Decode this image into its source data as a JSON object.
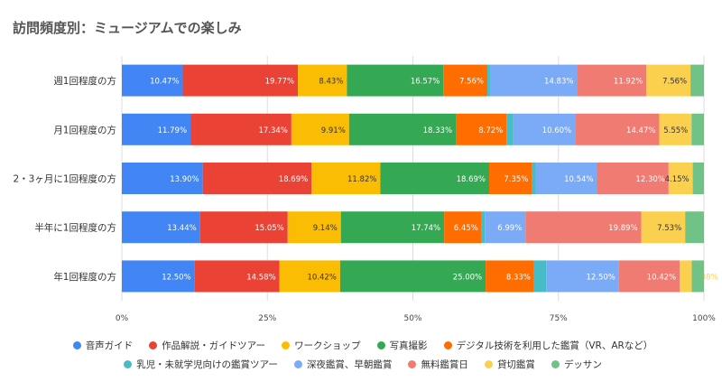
{
  "chart_data": {
    "type": "bar",
    "orientation": "horizontal",
    "stacked": true,
    "normalized": true,
    "title": "訪問頻度別：ミュージアムでの楽しみ",
    "categories": [
      "週1回程度の方",
      "月1回程度の方",
      "2・3ヶ月に1回程度の方",
      "半年に1回程度の方",
      "年1回程度の方"
    ],
    "xticks": [
      "0%",
      "25%",
      "50%",
      "75%",
      "100%"
    ],
    "xlim": [
      0,
      100
    ],
    "grid": true,
    "legend_position": "bottom",
    "series": [
      {
        "name": "音声ガイド",
        "color": "#4285F4",
        "values": [
          10.47,
          11.79,
          13.9,
          13.44,
          12.5
        ],
        "labels": [
          "10.47%",
          "11.79%",
          "13.90%",
          "13.44%",
          "12.50%"
        ]
      },
      {
        "name": "作品解説・ガイドツアー",
        "color": "#EA4335",
        "values": [
          19.77,
          17.34,
          18.69,
          15.05,
          14.58
        ],
        "labels": [
          "19.77%",
          "17.34%",
          "18.69%",
          "15.05%",
          "14.58%"
        ]
      },
      {
        "name": "ワークショップ",
        "color": "#FBBC04",
        "values": [
          8.43,
          9.91,
          11.82,
          9.14,
          10.42
        ],
        "labels": [
          "8.43%",
          "9.91%",
          "11.82%",
          "9.14%",
          "10.42%"
        ]
      },
      {
        "name": "写真撮影",
        "color": "#34A853",
        "values": [
          16.57,
          18.33,
          18.69,
          17.74,
          25.0
        ],
        "labels": [
          "16.57%",
          "18.33%",
          "18.69%",
          "17.74%",
          "25.00%"
        ]
      },
      {
        "name": "デジタル技術を利用した鑑賞（VR、ARなど）",
        "color": "#FF6D01",
        "values": [
          7.56,
          8.72,
          7.35,
          6.45,
          8.33
        ],
        "labels": [
          "7.56%",
          "8.72%",
          "7.35%",
          "6.45%",
          "8.33%"
        ]
      },
      {
        "name": "乳児・未就学児向けの鑑賞ツアー",
        "color": "#46BDC6",
        "values": [
          0.58,
          1.16,
          0.64,
          0.54,
          2.08
        ],
        "labels": [
          "",
          "",
          "",
          "",
          ""
        ]
      },
      {
        "name": "深夜鑑賞、早朝鑑賞",
        "color": "#7BAAF7",
        "values": [
          14.83,
          10.6,
          10.54,
          6.99,
          12.5
        ],
        "labels": [
          "14.83%",
          "10.60%",
          "10.54%",
          "6.99%",
          "12.50%"
        ]
      },
      {
        "name": "無料鑑賞日",
        "color": "#F07B72",
        "values": [
          11.92,
          14.47,
          12.3,
          19.89,
          10.42
        ],
        "labels": [
          "11.92%",
          "14.47%",
          "12.30%",
          "19.89%",
          "10.42%"
        ]
      },
      {
        "name": "貸切鑑賞",
        "color": "#FCD04F",
        "values": [
          7.56,
          5.55,
          4.15,
          7.53,
          2.08
        ],
        "labels": [
          "7.56%",
          "5.55%",
          "4.15%",
          "7.53%",
          "2.08%"
        ]
      },
      {
        "name": "デッサン",
        "color": "#71C287",
        "values": [
          2.31,
          2.13,
          1.92,
          3.23,
          2.09
        ],
        "labels": [
          "",
          "",
          "",
          "",
          ""
        ]
      }
    ]
  }
}
